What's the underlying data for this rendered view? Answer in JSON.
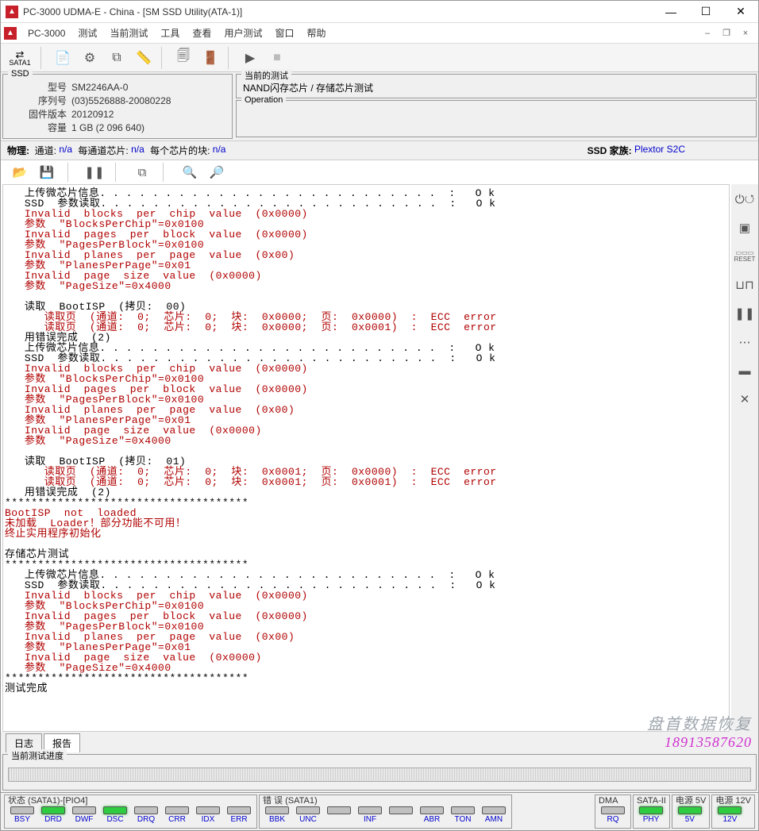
{
  "title": "PC-3000 UDMA-E - China - [SM SSD Utility(ATA-1)]",
  "menu": {
    "app": "PC-3000",
    "items": [
      "测试",
      "当前测试",
      "工具",
      "查看",
      "用户测试",
      "窗口",
      "帮助"
    ]
  },
  "toolbar": {
    "sata": "SATA1"
  },
  "ssd": {
    "legend": "SSD",
    "rows": [
      {
        "label": "型号",
        "value": "SM2246AA-0"
      },
      {
        "label": "序列号",
        "value": "(03)5526888-20080228"
      },
      {
        "label": "固件版本",
        "value": "20120912"
      },
      {
        "label": "容量",
        "value": "1 GB (2 096 640)"
      }
    ]
  },
  "currentTest": {
    "legend": "当前的测试",
    "value": "NAND闪存芯片 / 存储芯片测试"
  },
  "operation": {
    "legend": "Operation"
  },
  "phys": {
    "label": "物理:",
    "k1": "通道:",
    "v1": "n/a",
    "k2": "每通道芯片:",
    "v2": "n/a",
    "k3": "每个芯片的块:",
    "v3": "n/a",
    "famLabel": "SSD 家族:",
    "famValue": "Plextor S2C"
  },
  "tabs": {
    "log": "日志",
    "report": "报告"
  },
  "progress": {
    "legend": "当前测试进度"
  },
  "watermark": {
    "line1": "盘首数据恢复",
    "line2": "18913587620"
  },
  "status": {
    "g1": {
      "title": "状态 (SATA1)-[PIO4]",
      "leds": [
        {
          "name": "BSY",
          "on": false
        },
        {
          "name": "DRD",
          "on": true
        },
        {
          "name": "DWF",
          "on": false
        },
        {
          "name": "DSC",
          "on": true
        },
        {
          "name": "DRQ",
          "on": false
        },
        {
          "name": "CRR",
          "on": false
        },
        {
          "name": "IDX",
          "on": false
        },
        {
          "name": "ERR",
          "on": false
        }
      ]
    },
    "g2": {
      "title": "错 误 (SATA1)",
      "leds": [
        {
          "name": "BBK",
          "on": false
        },
        {
          "name": "UNC",
          "on": false
        },
        {
          "name": "",
          "on": false
        },
        {
          "name": "INF",
          "on": false
        },
        {
          "name": "",
          "on": false
        },
        {
          "name": "ABR",
          "on": false
        },
        {
          "name": "TON",
          "on": false
        },
        {
          "name": "AMN",
          "on": false
        }
      ]
    },
    "g3": {
      "title": "DMA",
      "leds": [
        {
          "name": "RQ",
          "on": false
        }
      ]
    },
    "g4": {
      "title": "SATA-II",
      "leds": [
        {
          "name": "PHY",
          "on": true
        }
      ]
    },
    "g5": {
      "title": "电源 5V",
      "leds": [
        {
          "name": "5V",
          "on": true
        }
      ]
    },
    "g6": {
      "title": "电源 12V",
      "leds": [
        {
          "name": "12V",
          "on": true
        }
      ]
    }
  },
  "log": [
    {
      "c": "black",
      "t": "   上传微芯片信息. . . . . . . . . . . . . . . . . . . . . . . . . .  :   O k"
    },
    {
      "c": "black",
      "t": "   SSD  参数读取. . . . . . . . . . . . . . . . . . . . . . . . . .  :   O k"
    },
    {
      "c": "red",
      "t": "   Invalid  blocks  per  chip  value  (0x0000)"
    },
    {
      "c": "red",
      "t": "   参数  \"BlocksPerChip\"=0x0100"
    },
    {
      "c": "red",
      "t": "   Invalid  pages  per  block  value  (0x0000)"
    },
    {
      "c": "red",
      "t": "   参数  \"PagesPerBlock\"=0x0100"
    },
    {
      "c": "red",
      "t": "   Invalid  planes  per  page  value  (0x00)"
    },
    {
      "c": "red",
      "t": "   参数  \"PlanesPerPage\"=0x01"
    },
    {
      "c": "red",
      "t": "   Invalid  page  size  value  (0x0000)"
    },
    {
      "c": "red",
      "t": "   参数  \"PageSize\"=0x4000"
    },
    {
      "c": "black",
      "t": ""
    },
    {
      "c": "black",
      "t": "   读取  BootISP  (拷贝:  00)"
    },
    {
      "c": "red",
      "t": "      读取页  (通道:  0;  芯片:  0;  块:  0x0000;  页:  0x0000)  :  ECC  error"
    },
    {
      "c": "red",
      "t": "      读取页  (通道:  0;  芯片:  0;  块:  0x0000;  页:  0x0001)  :  ECC  error"
    },
    {
      "c": "black",
      "t": "   用错误完成  (2)"
    },
    {
      "c": "black",
      "t": "   上传微芯片信息. . . . . . . . . . . . . . . . . . . . . . . . . .  :   O k"
    },
    {
      "c": "black",
      "t": "   SSD  参数读取. . . . . . . . . . . . . . . . . . . . . . . . . .  :   O k"
    },
    {
      "c": "red",
      "t": "   Invalid  blocks  per  chip  value  (0x0000)"
    },
    {
      "c": "red",
      "t": "   参数  \"BlocksPerChip\"=0x0100"
    },
    {
      "c": "red",
      "t": "   Invalid  pages  per  block  value  (0x0000)"
    },
    {
      "c": "red",
      "t": "   参数  \"PagesPerBlock\"=0x0100"
    },
    {
      "c": "red",
      "t": "   Invalid  planes  per  page  value  (0x00)"
    },
    {
      "c": "red",
      "t": "   参数  \"PlanesPerPage\"=0x01"
    },
    {
      "c": "red",
      "t": "   Invalid  page  size  value  (0x0000)"
    },
    {
      "c": "red",
      "t": "   参数  \"PageSize\"=0x4000"
    },
    {
      "c": "black",
      "t": ""
    },
    {
      "c": "black",
      "t": "   读取  BootISP  (拷贝:  01)"
    },
    {
      "c": "red",
      "t": "      读取页  (通道:  0;  芯片:  0;  块:  0x0001;  页:  0x0000)  :  ECC  error"
    },
    {
      "c": "red",
      "t": "      读取页  (通道:  0;  芯片:  0;  块:  0x0001;  页:  0x0001)  :  ECC  error"
    },
    {
      "c": "black",
      "t": "   用错误完成  (2)"
    },
    {
      "c": "black",
      "t": "*************************************"
    },
    {
      "c": "red",
      "t": "BootISP  not  loaded"
    },
    {
      "c": "red",
      "t": "未加载  Loader！部分功能不可用！"
    },
    {
      "c": "red",
      "t": "终止实用程序初始化"
    },
    {
      "c": "black",
      "t": ""
    },
    {
      "c": "black",
      "t": "存储芯片测试"
    },
    {
      "c": "black",
      "t": "*************************************"
    },
    {
      "c": "black",
      "t": "   上传微芯片信息. . . . . . . . . . . . . . . . . . . . . . . . . .  :   O k"
    },
    {
      "c": "black",
      "t": "   SSD  参数读取. . . . . . . . . . . . . . . . . . . . . . . . . .  :   O k"
    },
    {
      "c": "red",
      "t": "   Invalid  blocks  per  chip  value  (0x0000)"
    },
    {
      "c": "red",
      "t": "   参数  \"BlocksPerChip\"=0x0100"
    },
    {
      "c": "red",
      "t": "   Invalid  pages  per  block  value  (0x0000)"
    },
    {
      "c": "red",
      "t": "   参数  \"PagesPerBlock\"=0x0100"
    },
    {
      "c": "red",
      "t": "   Invalid  planes  per  page  value  (0x00)"
    },
    {
      "c": "red",
      "t": "   参数  \"PlanesPerPage\"=0x01"
    },
    {
      "c": "red",
      "t": "   Invalid  page  size  value  (0x0000)"
    },
    {
      "c": "red",
      "t": "   参数  \"PageSize\"=0x4000"
    },
    {
      "c": "black",
      "t": "*************************************"
    },
    {
      "c": "black",
      "t": "测试完成"
    }
  ]
}
